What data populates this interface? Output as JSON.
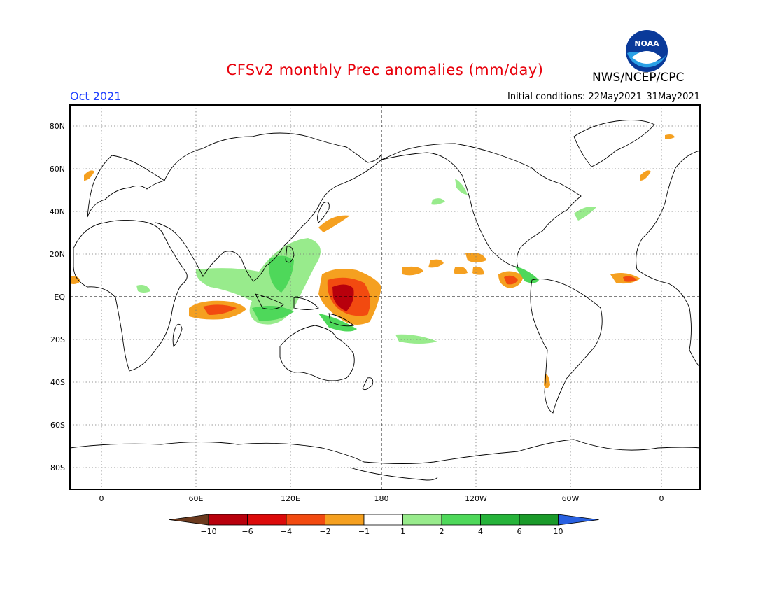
{
  "header": {
    "title": "CFSv2 monthly Prec anomalies (mm/day)",
    "agency": "NWS/NCEP/CPC",
    "month": "Oct 2021",
    "initial_conditions": "Initial conditions: 22May2021–31May2021",
    "logo_text": "NOAA"
  },
  "map": {
    "projection": "equirectangular",
    "lon_range": [
      -20,
      380
    ],
    "lat_range": [
      -90,
      90
    ],
    "lat_labels": [
      "80N",
      "60N",
      "40N",
      "20N",
      "EQ",
      "20S",
      "40S",
      "60S",
      "80S"
    ],
    "lon_labels": [
      "0",
      "60E",
      "120E",
      "180",
      "120W",
      "60W",
      "0"
    ]
  },
  "colorbar": {
    "labels": [
      "−10",
      "−6",
      "−4",
      "−2",
      "−1",
      "1",
      "2",
      "4",
      "6",
      "10"
    ],
    "colors": [
      "#6b3a1e",
      "#b8000c",
      "#dc0a0a",
      "#f24a10",
      "#f5a020",
      "#ffffff",
      "#98eb8c",
      "#4ed85a",
      "#26b33a",
      "#1a9a2a",
      "#2860e0"
    ]
  }
}
